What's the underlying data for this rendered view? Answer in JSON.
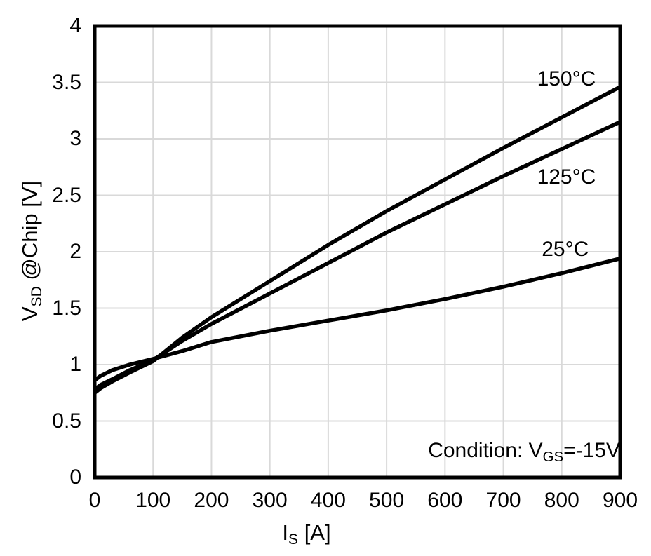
{
  "chart_data": {
    "type": "line",
    "title": "",
    "xlabel": {
      "pre": "I",
      "sub": "S",
      "post": " [A]"
    },
    "ylabel": {
      "pre": "V",
      "sub": "SD",
      "post": " @Chip [V]"
    },
    "annotation": {
      "pre": "Condition: V",
      "sub": "GS",
      "post": "=-15V"
    },
    "xlim": [
      0,
      900
    ],
    "ylim": [
      0,
      4
    ],
    "x_ticks": [
      0,
      100,
      200,
      300,
      400,
      500,
      600,
      700,
      800,
      900
    ],
    "y_ticks": [
      0,
      0.5,
      1,
      1.5,
      2,
      2.5,
      3,
      3.5,
      4
    ],
    "grid": true,
    "legend_position": "inline-labels",
    "colors": {
      "line": "#000000",
      "grid": "#d9d9d9",
      "border": "#000000",
      "text": "#000000",
      "background": "#ffffff"
    },
    "x": [
      0,
      10,
      30,
      60,
      100,
      150,
      200,
      300,
      400,
      500,
      600,
      700,
      800,
      900
    ],
    "series": [
      {
        "name": "150°C",
        "values": [
          0.75,
          0.79,
          0.85,
          0.93,
          1.03,
          1.24,
          1.42,
          1.74,
          2.06,
          2.36,
          2.64,
          2.92,
          3.19,
          3.46
        ],
        "label_pos": {
          "x": 808,
          "y": 3.53
        }
      },
      {
        "name": "125°C",
        "values": [
          0.78,
          0.82,
          0.87,
          0.95,
          1.04,
          1.21,
          1.36,
          1.63,
          1.9,
          2.17,
          2.42,
          2.67,
          2.91,
          3.15
        ],
        "label_pos": {
          "x": 808,
          "y": 2.66
        }
      },
      {
        "name": "25°C",
        "values": [
          0.86,
          0.9,
          0.95,
          1.0,
          1.05,
          1.12,
          1.2,
          1.3,
          1.39,
          1.48,
          1.58,
          1.69,
          1.81,
          1.94
        ],
        "label_pos": {
          "x": 806,
          "y": 2.02
        }
      }
    ]
  }
}
